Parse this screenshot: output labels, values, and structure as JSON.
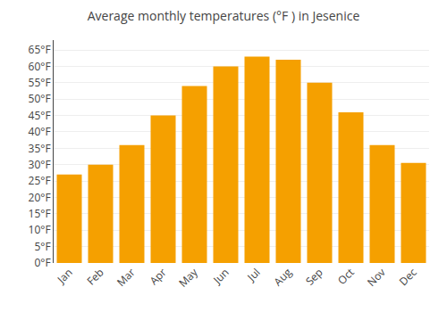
{
  "chart_data": {
    "type": "bar",
    "title": "Average monthly temperatures (°F ) in Jesenice",
    "categories": [
      "Jan",
      "Feb",
      "Mar",
      "Apr",
      "May",
      "Jun",
      "Jul",
      "Aug",
      "Sep",
      "Oct",
      "Nov",
      "Dec"
    ],
    "values": [
      27,
      30,
      36,
      45,
      54,
      60,
      63,
      62,
      55,
      46,
      36,
      30.5
    ],
    "color": "#F5A000",
    "ylim": [
      0,
      68
    ],
    "yticks": [
      {
        "value": 0,
        "label": "0°F"
      },
      {
        "value": 5,
        "label": "5°F"
      },
      {
        "value": 10,
        "label": "10°F"
      },
      {
        "value": 15,
        "label": "15°F"
      },
      {
        "value": 20,
        "label": "20°F"
      },
      {
        "value": 25,
        "label": "25°F"
      },
      {
        "value": 30,
        "label": "30°F"
      },
      {
        "value": 35,
        "label": "35°F"
      },
      {
        "value": 40,
        "label": "40°F"
      },
      {
        "value": 45,
        "label": "45°F"
      },
      {
        "value": 50,
        "label": "50°F"
      },
      {
        "value": 55,
        "label": "55°F"
      },
      {
        "value": 60,
        "label": "60°F"
      },
      {
        "value": 65,
        "label": "65°F"
      }
    ],
    "grid": true
  }
}
